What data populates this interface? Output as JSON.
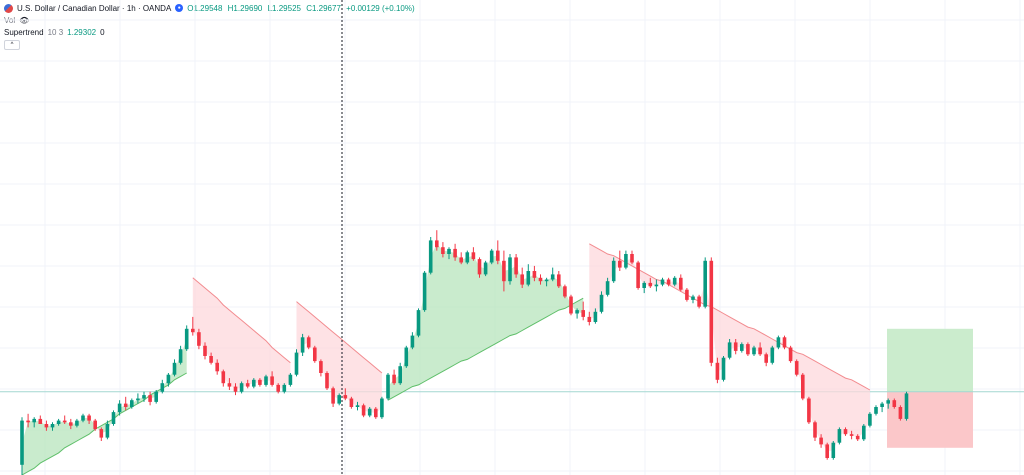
{
  "legend": {
    "symbol": "U.S. Dollar / Canadian Dollar · 1h · OANDA",
    "open": "O1.29548",
    "high": "H1.29690",
    "low": "L1.29525",
    "close": "C1.29677",
    "change": "+0.00129 (+0.10%)",
    "volume_label": "Vol",
    "indicator_name": "Supertrend",
    "indicator_params": "10 3",
    "indicator_value": "1.29302",
    "indicator_extra": "0"
  },
  "colors": {
    "up": "#089981",
    "down": "#f23645",
    "trend_up_fill": "#b7e4bc",
    "trend_down_fill": "#fdd8dc",
    "target_zone": "#cbeccd",
    "stop_zone": "#fbc7c9",
    "entry_line": "#a3d7d1"
  },
  "chart_data": {
    "type": "candlestick",
    "note_scale": "y values are relative price index 0-100",
    "ylim": [
      0,
      100
    ],
    "candles": [
      [
        3.0,
        17.0,
        0.0,
        16.0
      ],
      [
        16.0,
        18.0,
        14.0,
        15.5
      ],
      [
        15.5,
        17.0,
        14.0,
        16.5
      ],
      [
        16.5,
        17.5,
        15.0,
        15.0
      ],
      [
        15.0,
        16.0,
        13.0,
        14.0
      ],
      [
        14.0,
        15.5,
        13.0,
        15.0
      ],
      [
        15.0,
        16.5,
        14.5,
        16.0
      ],
      [
        16.0,
        17.5,
        15.0,
        15.5
      ],
      [
        15.5,
        16.5,
        13.5,
        14.5
      ],
      [
        14.5,
        16.5,
        14.0,
        16.0
      ],
      [
        16.0,
        18.0,
        15.5,
        17.5
      ],
      [
        17.5,
        18.0,
        15.0,
        16.0
      ],
      [
        16.0,
        16.5,
        13.0,
        13.5
      ],
      [
        13.5,
        14.0,
        10.0,
        11.0
      ],
      [
        11.0,
        16.0,
        10.5,
        15.0
      ],
      [
        15.0,
        19.0,
        14.5,
        18.5
      ],
      [
        18.5,
        22.0,
        17.5,
        21.0
      ],
      [
        21.0,
        23.0,
        19.0,
        20.0
      ],
      [
        20.0,
        22.5,
        19.5,
        22.0
      ],
      [
        22.0,
        24.0,
        21.0,
        22.5
      ],
      [
        22.5,
        24.5,
        21.5,
        23.5
      ],
      [
        23.5,
        24.5,
        20.5,
        21.5
      ],
      [
        21.5,
        25.0,
        21.0,
        24.5
      ],
      [
        24.5,
        28.0,
        24.0,
        27.0
      ],
      [
        27.0,
        30.0,
        26.0,
        29.5
      ],
      [
        29.5,
        34.0,
        29.0,
        33.0
      ],
      [
        33.0,
        38.0,
        32.5,
        37.0
      ],
      [
        37.0,
        44.0,
        36.5,
        43.0
      ],
      [
        43.0,
        46.5,
        41.0,
        42.0
      ],
      [
        42.0,
        43.0,
        37.0,
        38.0
      ],
      [
        38.0,
        39.0,
        34.0,
        35.0
      ],
      [
        35.0,
        36.0,
        32.5,
        33.0
      ],
      [
        33.0,
        34.0,
        29.5,
        30.5
      ],
      [
        30.5,
        31.0,
        26.0,
        27.0
      ],
      [
        27.0,
        28.5,
        25.0,
        26.0
      ],
      [
        26.0,
        27.0,
        23.5,
        24.5
      ],
      [
        24.5,
        27.5,
        24.0,
        27.0
      ],
      [
        27.0,
        28.0,
        25.5,
        26.0
      ],
      [
        26.0,
        28.5,
        25.5,
        28.0
      ],
      [
        28.0,
        28.5,
        26.0,
        26.5
      ],
      [
        26.5,
        29.5,
        26.0,
        29.0
      ],
      [
        29.0,
        30.5,
        26.0,
        26.5
      ],
      [
        26.5,
        27.0,
        24.0,
        24.5
      ],
      [
        24.5,
        27.0,
        24.0,
        26.5
      ],
      [
        26.5,
        30.0,
        26.0,
        29.5
      ],
      [
        29.5,
        37.0,
        29.0,
        36.0
      ],
      [
        36.0,
        41.5,
        35.0,
        40.5
      ],
      [
        40.5,
        41.0,
        37.0,
        37.5
      ],
      [
        37.5,
        38.0,
        33.0,
        33.5
      ],
      [
        33.5,
        34.0,
        29.0,
        30.0
      ],
      [
        30.0,
        30.5,
        25.0,
        25.5
      ],
      [
        25.5,
        26.0,
        20.0,
        21.0
      ],
      [
        21.0,
        24.0,
        20.5,
        23.5
      ],
      [
        23.5,
        25.5,
        22.0,
        22.5
      ],
      [
        22.5,
        23.0,
        19.5,
        20.0
      ],
      [
        20.0,
        21.5,
        19.0,
        20.5
      ],
      [
        20.5,
        21.0,
        17.0,
        17.5
      ],
      [
        17.5,
        20.0,
        17.0,
        19.5
      ],
      [
        19.5,
        20.0,
        16.5,
        17.0
      ],
      [
        17.0,
        23.0,
        16.5,
        22.5
      ],
      [
        22.5,
        30.0,
        22.0,
        29.5
      ],
      [
        29.5,
        31.0,
        26.5,
        27.0
      ],
      [
        27.0,
        33.0,
        26.5,
        32.0
      ],
      [
        32.0,
        38.0,
        31.5,
        37.5
      ],
      [
        37.5,
        42.0,
        37.0,
        41.0
      ],
      [
        41.0,
        49.0,
        40.5,
        48.5
      ],
      [
        48.5,
        60.0,
        48.0,
        59.5
      ],
      [
        59.5,
        70.0,
        59.0,
        69.0
      ],
      [
        69.0,
        72.0,
        66.0,
        67.0
      ],
      [
        67.0,
        68.5,
        64.0,
        65.0
      ],
      [
        65.0,
        67.0,
        63.5,
        66.5
      ],
      [
        66.5,
        68.0,
        63.0,
        64.0
      ],
      [
        64.0,
        65.5,
        62.0,
        62.5
      ],
      [
        62.5,
        66.0,
        62.0,
        65.5
      ],
      [
        65.5,
        67.0,
        63.0,
        63.5
      ],
      [
        63.5,
        64.0,
        58.0,
        59.0
      ],
      [
        59.0,
        63.0,
        58.5,
        62.5
      ],
      [
        62.5,
        66.5,
        62.0,
        66.0
      ],
      [
        66.0,
        69.0,
        62.0,
        63.0
      ],
      [
        63.0,
        66.0,
        54.0,
        57.0
      ],
      [
        57.0,
        65.0,
        56.0,
        64.0
      ],
      [
        64.0,
        65.0,
        58.0,
        59.0
      ],
      [
        59.0,
        61.0,
        55.0,
        56.0
      ],
      [
        56.0,
        62.0,
        55.5,
        60.0
      ],
      [
        60.0,
        61.5,
        57.0,
        58.0
      ],
      [
        58.0,
        59.0,
        56.0,
        57.0
      ],
      [
        57.0,
        58.0,
        55.5,
        57.5
      ],
      [
        57.5,
        61.0,
        57.0,
        59.0
      ],
      [
        59.0,
        60.0,
        55.0,
        55.5
      ],
      [
        55.5,
        56.0,
        52.0,
        52.5
      ],
      [
        52.5,
        53.0,
        47.0,
        47.5
      ],
      [
        47.5,
        49.0,
        46.0,
        48.5
      ],
      [
        48.5,
        51.0,
        45.5,
        46.5
      ],
      [
        46.5,
        48.0,
        44.0,
        45.0
      ],
      [
        45.0,
        49.0,
        44.5,
        48.0
      ],
      [
        48.0,
        54.0,
        47.5,
        53.0
      ],
      [
        53.0,
        58.0,
        52.5,
        57.0
      ],
      [
        57.0,
        64.0,
        56.5,
        63.0
      ],
      [
        63.0,
        66.0,
        60.0,
        61.0
      ],
      [
        61.0,
        66.0,
        60.5,
        65.0
      ],
      [
        65.0,
        66.0,
        62.0,
        62.5
      ],
      [
        62.5,
        63.0,
        54.5,
        55.0
      ],
      [
        55.0,
        57.0,
        53.5,
        56.5
      ],
      [
        56.5,
        58.0,
        55.0,
        55.5
      ],
      [
        55.5,
        57.5,
        54.0,
        56.0
      ],
      [
        56.0,
        58.0,
        55.5,
        57.5
      ],
      [
        57.5,
        58.0,
        55.5,
        56.0
      ],
      [
        56.0,
        58.5,
        55.5,
        58.0
      ],
      [
        58.0,
        59.0,
        54.0,
        54.5
      ],
      [
        54.5,
        55.0,
        51.0,
        51.5
      ],
      [
        51.5,
        53.0,
        50.5,
        52.5
      ],
      [
        52.5,
        53.0,
        49.0,
        49.5
      ],
      [
        49.5,
        64.0,
        49.0,
        63.0
      ],
      [
        63.0,
        64.0,
        32.0,
        33.0
      ],
      [
        33.0,
        34.5,
        27.0,
        28.0
      ],
      [
        28.0,
        35.0,
        27.5,
        34.5
      ],
      [
        34.5,
        40.0,
        34.0,
        39.0
      ],
      [
        39.0,
        40.0,
        35.5,
        36.5
      ],
      [
        36.5,
        39.0,
        36.0,
        38.5
      ],
      [
        38.5,
        39.0,
        35.0,
        35.5
      ],
      [
        35.5,
        38.0,
        35.0,
        37.5
      ],
      [
        37.5,
        39.0,
        35.0,
        35.5
      ],
      [
        35.5,
        36.0,
        32.0,
        33.0
      ],
      [
        33.0,
        38.0,
        32.5,
        37.5
      ],
      [
        37.5,
        41.0,
        37.0,
        40.5
      ],
      [
        40.5,
        41.0,
        37.0,
        37.5
      ],
      [
        37.5,
        38.0,
        33.0,
        33.5
      ],
      [
        33.5,
        34.0,
        29.0,
        29.5
      ],
      [
        29.5,
        30.0,
        22.0,
        22.5
      ],
      [
        22.5,
        23.0,
        15.0,
        15.5
      ],
      [
        15.5,
        16.0,
        10.0,
        11.0
      ],
      [
        11.0,
        12.0,
        8.0,
        9.0
      ],
      [
        9.0,
        9.5,
        4.5,
        5.0
      ],
      [
        5.0,
        10.0,
        4.5,
        9.5
      ],
      [
        9.5,
        14.0,
        9.0,
        13.5
      ],
      [
        13.5,
        14.0,
        11.5,
        12.0
      ],
      [
        12.0,
        13.0,
        10.5,
        11.5
      ],
      [
        11.5,
        12.0,
        10.0,
        10.5
      ],
      [
        10.5,
        15.0,
        10.0,
        14.5
      ],
      [
        14.5,
        18.5,
        14.0,
        18.0
      ],
      [
        18.0,
        20.5,
        17.5,
        20.0
      ],
      [
        20.0,
        21.5,
        18.5,
        21.0
      ],
      [
        21.0,
        22.5,
        19.5,
        22.0
      ],
      [
        22.0,
        22.5,
        19.5,
        20.0
      ],
      [
        20.0,
        20.5,
        16.0,
        16.5
      ],
      [
        16.5,
        24.5,
        16.0,
        24.0
      ]
    ],
    "supertrend": [
      {
        "range": [
          0,
          27
        ],
        "direction": "up",
        "start": 0,
        "end": 30
      },
      {
        "range": [
          28,
          44
        ],
        "direction": "down",
        "start": 58,
        "end": 33
      },
      {
        "range": [
          45,
          59
        ],
        "direction": "down",
        "start": 51,
        "end": 30
      },
      {
        "range": [
          60,
          92
        ],
        "direction": "up",
        "start": 22,
        "end": 52
      },
      {
        "range": [
          93,
          139
        ],
        "direction": "down",
        "start": 68,
        "end": 25
      }
    ],
    "position": {
      "entry": 24.5,
      "target": 43.0,
      "stop": 8.0
    }
  }
}
